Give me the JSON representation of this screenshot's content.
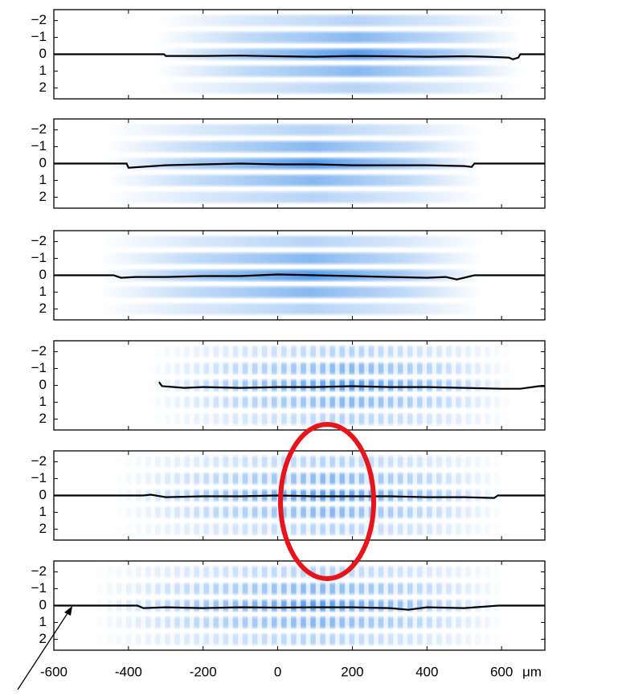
{
  "chart_data": [
    {
      "type": "line",
      "xlim": [
        -600,
        716
      ],
      "ylim": [
        2.65,
        -2.65
      ],
      "xticks": [
        -600,
        -400,
        -200,
        0,
        200,
        400,
        600
      ],
      "yticks": [
        {
          "value": -2,
          "label": "−2"
        },
        {
          "value": -1,
          "label": "−1"
        },
        0,
        1,
        2
      ],
      "fringes": [
        -330,
        655
      ],
      "fringe_rows": [
        -2,
        -1,
        0,
        1,
        2
      ],
      "series": [
        {
          "color": "#000000",
          "x": [
            -600,
            -305,
            -300,
            -200,
            -100,
            0,
            100,
            200,
            300,
            400,
            500,
            560,
            620,
            630,
            645,
            650,
            716
          ],
          "y": [
            0,
            0,
            0.1,
            0.1,
            0.08,
            0.12,
            0.15,
            0.1,
            0.12,
            0.15,
            0.12,
            0.15,
            0.2,
            0.3,
            0.2,
            0,
            0
          ]
        }
      ]
    },
    {
      "type": "line",
      "xlim": [
        -600,
        716
      ],
      "ylim": [
        2.65,
        -2.65
      ],
      "xticks": [
        -600,
        -400,
        -200,
        0,
        200,
        400,
        600
      ],
      "yticks": [
        {
          "value": -2,
          "label": "−2"
        },
        {
          "value": -1,
          "label": "−1"
        },
        0,
        1,
        2
      ],
      "fringes": [
        -460,
        550
      ],
      "fringe_rows": [
        -2,
        -1,
        0,
        1,
        2
      ],
      "series": [
        {
          "color": "#000000",
          "x": [
            -600,
            -405,
            -400,
            -300,
            -200,
            -100,
            0,
            100,
            200,
            300,
            400,
            500,
            520,
            527,
            716
          ],
          "y": [
            0,
            0,
            0.25,
            0.1,
            0.05,
            0,
            0.05,
            0.05,
            0.1,
            0.1,
            0.1,
            0.15,
            0.2,
            0,
            0
          ]
        }
      ]
    },
    {
      "type": "line",
      "xlim": [
        -600,
        716
      ],
      "ylim": [
        2.65,
        -2.65
      ],
      "xticks": [
        -600,
        -400,
        -200,
        0,
        200,
        400,
        600
      ],
      "yticks": [
        {
          "value": -2,
          "label": "−2"
        },
        {
          "value": -1,
          "label": "−1"
        },
        0,
        1,
        2
      ],
      "fringes": [
        -480,
        550
      ],
      "fringe_rows": [
        -2,
        -1,
        0,
        1,
        2
      ],
      "series": [
        {
          "color": "#000000",
          "x": [
            -600,
            -440,
            -420,
            -380,
            -300,
            -200,
            -100,
            0,
            100,
            200,
            300,
            400,
            450,
            480,
            527,
            716
          ],
          "y": [
            0,
            0,
            0.15,
            0.1,
            0.1,
            0.05,
            0.05,
            -0.05,
            0,
            0.05,
            0.1,
            0.15,
            0.1,
            0.25,
            0,
            0
          ]
        }
      ]
    },
    {
      "type": "line",
      "xlim": [
        -600,
        716
      ],
      "ylim": [
        2.65,
        -2.65
      ],
      "xticks": [
        -600,
        -400,
        -200,
        0,
        200,
        400,
        600
      ],
      "yticks": [
        {
          "value": -2,
          "label": "−2"
        },
        {
          "value": -1,
          "label": "−1"
        },
        0,
        1,
        2
      ],
      "fringes": [
        -355,
        635
      ],
      "fringe_rows": [
        -2,
        -1,
        0,
        1,
        2
      ],
      "fringe_spacing": 26,
      "series": [
        {
          "color": "#000000",
          "x": [
            -318,
            -310,
            -250,
            -200,
            -100,
            0,
            100,
            200,
            300,
            400,
            500,
            600,
            650,
            700,
            716
          ],
          "y": [
            -0.2,
            0.05,
            0.15,
            0.1,
            0.15,
            0.1,
            0.1,
            0.05,
            0.1,
            0.1,
            0.15,
            0.2,
            0.2,
            0.05,
            0.05
          ]
        }
      ]
    },
    {
      "type": "line",
      "xlim": [
        -600,
        716
      ],
      "ylim": [
        2.65,
        -2.65
      ],
      "xticks": [
        -600,
        -400,
        -200,
        0,
        200,
        400,
        600
      ],
      "yticks": [
        {
          "value": -2,
          "label": "−2"
        },
        {
          "value": -1,
          "label": "−1"
        },
        0,
        1,
        2
      ],
      "fringes": [
        -440,
        615
      ],
      "fringe_rows": [
        -2,
        -1,
        0,
        1,
        2
      ],
      "fringe_spacing": 26,
      "series": [
        {
          "color": "#000000",
          "x": [
            -600,
            -360,
            -340,
            -300,
            -200,
            -100,
            0,
            100,
            200,
            300,
            400,
            500,
            580,
            590,
            716
          ],
          "y": [
            0,
            0,
            -0.05,
            0.1,
            0.05,
            0.05,
            0,
            0.05,
            0.05,
            0.05,
            0.1,
            0.1,
            0.15,
            0,
            0
          ]
        }
      ]
    },
    {
      "type": "line",
      "xlim": [
        -600,
        716
      ],
      "ylim": [
        2.65,
        -2.65
      ],
      "xticks": [
        -600,
        -400,
        -200,
        0,
        200,
        400,
        600
      ],
      "yticks": [
        {
          "value": -2,
          "label": "−2"
        },
        {
          "value": -1,
          "label": "−1"
        },
        0,
        1,
        2
      ],
      "xlabel": "μm",
      "fringes": [
        -505,
        615
      ],
      "fringe_rows": [
        -2,
        -1,
        0,
        1,
        2
      ],
      "fringe_spacing": 26,
      "series": [
        {
          "color": "#000000",
          "x": [
            -600,
            -376,
            -360,
            -300,
            -200,
            -100,
            0,
            100,
            200,
            300,
            350,
            400,
            500,
            592,
            716
          ],
          "y": [
            0,
            0,
            0.15,
            0.1,
            0.15,
            0.1,
            0.12,
            0.1,
            0.1,
            0.15,
            0.25,
            0.1,
            0.15,
            0,
            0
          ]
        }
      ]
    }
  ]
}
